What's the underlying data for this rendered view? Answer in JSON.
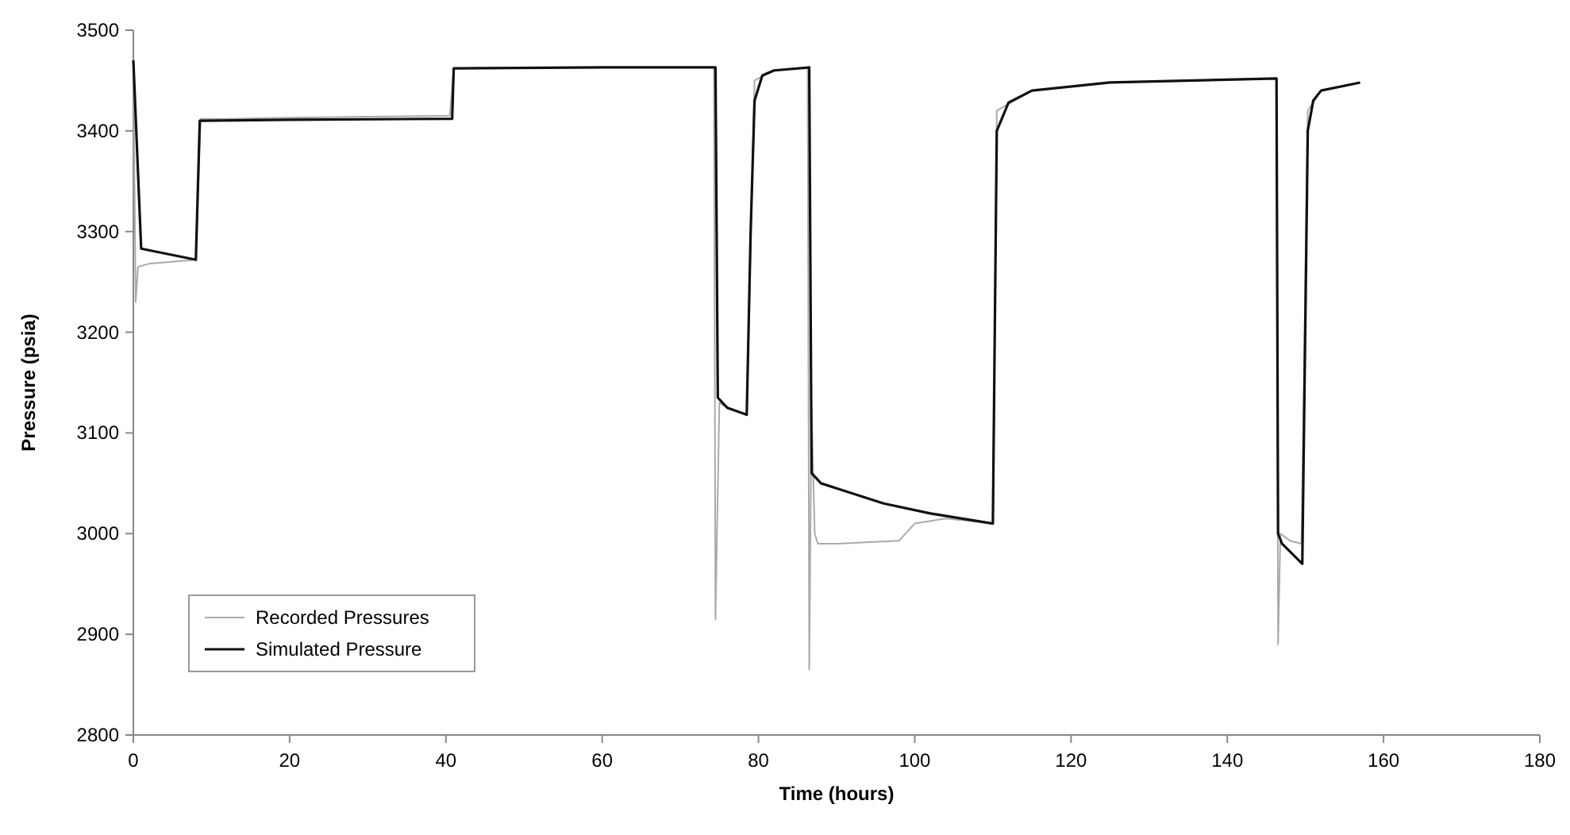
{
  "chart_data": {
    "type": "line",
    "xlabel": "Time (hours)",
    "ylabel": "Pressure (psia)",
    "xlim": [
      0,
      180
    ],
    "xticks": [
      0,
      20,
      40,
      60,
      80,
      100,
      120,
      140,
      160,
      180
    ],
    "ylim": [
      2800,
      3500
    ],
    "yticks": [
      2800,
      2900,
      3000,
      3100,
      3200,
      3300,
      3400,
      3500
    ],
    "grid": false,
    "legend": "bottom left",
    "line_style": "solid",
    "series": [
      {
        "name": "Recorded Pressures",
        "color": "#aaaaaa",
        "x": [
          0,
          0.3,
          0.6,
          2,
          8,
          8.6,
          12,
          20,
          30,
          40.5,
          41,
          50,
          60,
          74.3,
          74.5,
          75,
          76,
          78.5,
          79.5,
          82,
          86.3,
          86.5,
          86.8,
          87.2,
          87.6,
          90,
          98,
          100,
          104,
          110,
          110.5,
          115,
          125,
          146.3,
          146.5,
          146.8,
          148,
          149.5,
          150.3,
          152,
          157
        ],
        "values": [
          3470,
          3230,
          3265,
          3268,
          3272,
          3412,
          3412,
          3413,
          3414,
          3415,
          3462,
          3463,
          3463,
          3463,
          2915,
          3130,
          3125,
          3118,
          3450,
          3460,
          3463,
          2865,
          3125,
          3000,
          2990,
          2990,
          2993,
          3010,
          3015,
          3010,
          3420,
          3440,
          3448,
          3452,
          2890,
          3000,
          2993,
          2990,
          3420,
          3440,
          3448
        ]
      },
      {
        "name": "Simulated Pressure",
        "color": "#111111",
        "x": [
          0,
          1,
          8,
          8.5,
          20,
          40.8,
          41,
          60,
          74.5,
          74.8,
          76,
          78.5,
          79,
          79.5,
          80.5,
          82,
          86.5,
          86.8,
          88,
          90,
          96,
          102,
          110,
          110.5,
          112,
          115,
          125,
          146.3,
          146.5,
          147,
          149.6,
          150.3,
          151,
          152,
          157
        ],
        "values": [
          3470,
          3283,
          3272,
          3410,
          3411,
          3412,
          3462,
          3463,
          3463,
          3135,
          3125,
          3118,
          3300,
          3430,
          3455,
          3460,
          3463,
          3060,
          3050,
          3045,
          3030,
          3020,
          3010,
          3400,
          3428,
          3440,
          3448,
          3452,
          3000,
          2990,
          2970,
          3400,
          3430,
          3440,
          3448
        ]
      }
    ]
  }
}
